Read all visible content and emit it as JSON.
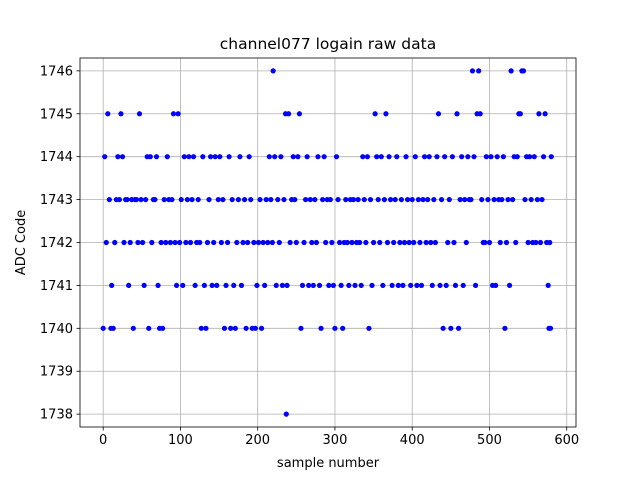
{
  "chart_data": {
    "type": "scatter",
    "title": "channel077 logain raw data",
    "xlabel": "sample number",
    "ylabel": "ADC Code",
    "xlim": [
      -30,
      612
    ],
    "ylim": [
      1737.7,
      1746.3
    ],
    "xticks": [
      0,
      100,
      200,
      300,
      400,
      500,
      600
    ],
    "yticks": [
      1738,
      1739,
      1740,
      1741,
      1742,
      1743,
      1744,
      1745,
      1746
    ],
    "grid": true,
    "marker_color": "#0000ff",
    "series": [
      {
        "points": [
          [
            0,
            1740
          ],
          [
            2,
            1744
          ],
          [
            4,
            1742
          ],
          [
            6,
            1745
          ],
          [
            8,
            1743
          ],
          [
            10,
            1740
          ],
          [
            11,
            1741
          ],
          [
            13,
            1740
          ],
          [
            15,
            1742
          ],
          [
            17,
            1743
          ],
          [
            19,
            1744
          ],
          [
            21,
            1743
          ],
          [
            23,
            1745
          ],
          [
            25,
            1744
          ],
          [
            27,
            1742
          ],
          [
            29,
            1743
          ],
          [
            31,
            1743
          ],
          [
            33,
            1741
          ],
          [
            35,
            1742
          ],
          [
            37,
            1743
          ],
          [
            39,
            1740
          ],
          [
            41,
            1743
          ],
          [
            43,
            1743
          ],
          [
            45,
            1742
          ],
          [
            47,
            1745
          ],
          [
            49,
            1743
          ],
          [
            51,
            1742
          ],
          [
            53,
            1741
          ],
          [
            55,
            1743
          ],
          [
            57,
            1744
          ],
          [
            59,
            1740
          ],
          [
            61,
            1744
          ],
          [
            63,
            1742
          ],
          [
            65,
            1743
          ],
          [
            67,
            1743
          ],
          [
            69,
            1744
          ],
          [
            71,
            1741
          ],
          [
            73,
            1740
          ],
          [
            75,
            1742
          ],
          [
            77,
            1740
          ],
          [
            79,
            1743
          ],
          [
            81,
            1742
          ],
          [
            83,
            1744
          ],
          [
            85,
            1743
          ],
          [
            87,
            1742
          ],
          [
            89,
            1743
          ],
          [
            91,
            1745
          ],
          [
            93,
            1742
          ],
          [
            95,
            1741
          ],
          [
            97,
            1745
          ],
          [
            99,
            1742
          ],
          [
            101,
            1743
          ],
          [
            103,
            1741
          ],
          [
            105,
            1744
          ],
          [
            107,
            1742
          ],
          [
            109,
            1743
          ],
          [
            111,
            1744
          ],
          [
            113,
            1742
          ],
          [
            115,
            1743
          ],
          [
            117,
            1744
          ],
          [
            119,
            1741
          ],
          [
            121,
            1742
          ],
          [
            123,
            1743
          ],
          [
            125,
            1742
          ],
          [
            127,
            1740
          ],
          [
            129,
            1744
          ],
          [
            131,
            1741
          ],
          [
            133,
            1740
          ],
          [
            135,
            1742
          ],
          [
            137,
            1743
          ],
          [
            139,
            1744
          ],
          [
            141,
            1741
          ],
          [
            143,
            1742
          ],
          [
            145,
            1744
          ],
          [
            147,
            1741
          ],
          [
            149,
            1743
          ],
          [
            151,
            1744
          ],
          [
            153,
            1742
          ],
          [
            155,
            1743
          ],
          [
            157,
            1740
          ],
          [
            159,
            1741
          ],
          [
            161,
            1742
          ],
          [
            163,
            1744
          ],
          [
            165,
            1740
          ],
          [
            167,
            1743
          ],
          [
            169,
            1741
          ],
          [
            171,
            1740
          ],
          [
            173,
            1742
          ],
          [
            175,
            1743
          ],
          [
            177,
            1744
          ],
          [
            179,
            1741
          ],
          [
            181,
            1742
          ],
          [
            183,
            1743
          ],
          [
            185,
            1740
          ],
          [
            187,
            1742
          ],
          [
            189,
            1744
          ],
          [
            191,
            1743
          ],
          [
            193,
            1740
          ],
          [
            195,
            1742
          ],
          [
            197,
            1740
          ],
          [
            199,
            1741
          ],
          [
            201,
            1742
          ],
          [
            203,
            1743
          ],
          [
            205,
            1740
          ],
          [
            207,
            1742
          ],
          [
            209,
            1741
          ],
          [
            211,
            1743
          ],
          [
            213,
            1742
          ],
          [
            215,
            1744
          ],
          [
            217,
            1743
          ],
          [
            219,
            1742
          ],
          [
            220,
            1746
          ],
          [
            222,
            1744
          ],
          [
            224,
            1741
          ],
          [
            226,
            1743
          ],
          [
            228,
            1742
          ],
          [
            230,
            1744
          ],
          [
            232,
            1741
          ],
          [
            234,
            1743
          ],
          [
            236,
            1745
          ],
          [
            237,
            1738
          ],
          [
            238,
            1741
          ],
          [
            240,
            1745
          ],
          [
            242,
            1742
          ],
          [
            244,
            1743
          ],
          [
            246,
            1744
          ],
          [
            248,
            1743
          ],
          [
            250,
            1742
          ],
          [
            252,
            1744
          ],
          [
            254,
            1745
          ],
          [
            256,
            1740
          ],
          [
            258,
            1741
          ],
          [
            260,
            1742
          ],
          [
            262,
            1743
          ],
          [
            264,
            1744
          ],
          [
            266,
            1741
          ],
          [
            268,
            1743
          ],
          [
            270,
            1742
          ],
          [
            272,
            1741
          ],
          [
            274,
            1743
          ],
          [
            276,
            1742
          ],
          [
            278,
            1744
          ],
          [
            280,
            1741
          ],
          [
            282,
            1740
          ],
          [
            284,
            1743
          ],
          [
            286,
            1744
          ],
          [
            288,
            1742
          ],
          [
            290,
            1743
          ],
          [
            292,
            1741
          ],
          [
            294,
            1743
          ],
          [
            296,
            1742
          ],
          [
            298,
            1741
          ],
          [
            300,
            1740
          ],
          [
            302,
            1744
          ],
          [
            304,
            1743
          ],
          [
            306,
            1742
          ],
          [
            308,
            1741
          ],
          [
            310,
            1740
          ],
          [
            312,
            1742
          ],
          [
            314,
            1743
          ],
          [
            316,
            1742
          ],
          [
            318,
            1741
          ],
          [
            320,
            1743
          ],
          [
            322,
            1742
          ],
          [
            324,
            1743
          ],
          [
            326,
            1741
          ],
          [
            328,
            1742
          ],
          [
            330,
            1743
          ],
          [
            332,
            1742
          ],
          [
            334,
            1741
          ],
          [
            336,
            1744
          ],
          [
            338,
            1743
          ],
          [
            340,
            1742
          ],
          [
            342,
            1744
          ],
          [
            344,
            1740
          ],
          [
            346,
            1743
          ],
          [
            348,
            1741
          ],
          [
            350,
            1742
          ],
          [
            352,
            1745
          ],
          [
            354,
            1744
          ],
          [
            356,
            1743
          ],
          [
            358,
            1742
          ],
          [
            360,
            1744
          ],
          [
            362,
            1741
          ],
          [
            364,
            1743
          ],
          [
            366,
            1745
          ],
          [
            368,
            1742
          ],
          [
            370,
            1744
          ],
          [
            372,
            1743
          ],
          [
            374,
            1741
          ],
          [
            376,
            1742
          ],
          [
            378,
            1743
          ],
          [
            380,
            1744
          ],
          [
            382,
            1741
          ],
          [
            384,
            1742
          ],
          [
            386,
            1743
          ],
          [
            388,
            1741
          ],
          [
            390,
            1742
          ],
          [
            392,
            1744
          ],
          [
            394,
            1743
          ],
          [
            396,
            1742
          ],
          [
            398,
            1741
          ],
          [
            400,
            1743
          ],
          [
            402,
            1742
          ],
          [
            404,
            1744
          ],
          [
            406,
            1741
          ],
          [
            408,
            1743
          ],
          [
            410,
            1742
          ],
          [
            412,
            1741
          ],
          [
            414,
            1743
          ],
          [
            416,
            1744
          ],
          [
            418,
            1742
          ],
          [
            420,
            1743
          ],
          [
            422,
            1744
          ],
          [
            424,
            1742
          ],
          [
            426,
            1741
          ],
          [
            428,
            1743
          ],
          [
            430,
            1742
          ],
          [
            432,
            1744
          ],
          [
            434,
            1745
          ],
          [
            436,
            1741
          ],
          [
            438,
            1743
          ],
          [
            440,
            1740
          ],
          [
            442,
            1744
          ],
          [
            444,
            1741
          ],
          [
            446,
            1742
          ],
          [
            448,
            1743
          ],
          [
            450,
            1740
          ],
          [
            452,
            1744
          ],
          [
            454,
            1742
          ],
          [
            456,
            1741
          ],
          [
            458,
            1745
          ],
          [
            460,
            1740
          ],
          [
            462,
            1743
          ],
          [
            464,
            1744
          ],
          [
            466,
            1741
          ],
          [
            468,
            1743
          ],
          [
            470,
            1742
          ],
          [
            472,
            1744
          ],
          [
            474,
            1743
          ],
          [
            476,
            1743
          ],
          [
            478,
            1746
          ],
          [
            480,
            1744
          ],
          [
            482,
            1741
          ],
          [
            484,
            1745
          ],
          [
            486,
            1746
          ],
          [
            488,
            1745
          ],
          [
            490,
            1743
          ],
          [
            492,
            1742
          ],
          [
            494,
            1742
          ],
          [
            496,
            1744
          ],
          [
            498,
            1743
          ],
          [
            500,
            1742
          ],
          [
            502,
            1744
          ],
          [
            504,
            1741
          ],
          [
            506,
            1743
          ],
          [
            508,
            1741
          ],
          [
            510,
            1744
          ],
          [
            512,
            1743
          ],
          [
            514,
            1742
          ],
          [
            516,
            1743
          ],
          [
            518,
            1744
          ],
          [
            520,
            1740
          ],
          [
            522,
            1742
          ],
          [
            524,
            1743
          ],
          [
            526,
            1741
          ],
          [
            528,
            1746
          ],
          [
            530,
            1743
          ],
          [
            532,
            1744
          ],
          [
            534,
            1742
          ],
          [
            536,
            1744
          ],
          [
            538,
            1745
          ],
          [
            540,
            1745
          ],
          [
            542,
            1746
          ],
          [
            544,
            1746
          ],
          [
            546,
            1743
          ],
          [
            548,
            1744
          ],
          [
            550,
            1742
          ],
          [
            552,
            1744
          ],
          [
            554,
            1743
          ],
          [
            556,
            1742
          ],
          [
            558,
            1744
          ],
          [
            560,
            1742
          ],
          [
            562,
            1743
          ],
          [
            564,
            1745
          ],
          [
            566,
            1742
          ],
          [
            568,
            1743
          ],
          [
            570,
            1744
          ],
          [
            572,
            1745
          ],
          [
            574,
            1742
          ],
          [
            576,
            1741
          ],
          [
            577,
            1740
          ],
          [
            578,
            1742
          ],
          [
            579,
            1740
          ],
          [
            580,
            1744
          ]
        ]
      }
    ]
  }
}
